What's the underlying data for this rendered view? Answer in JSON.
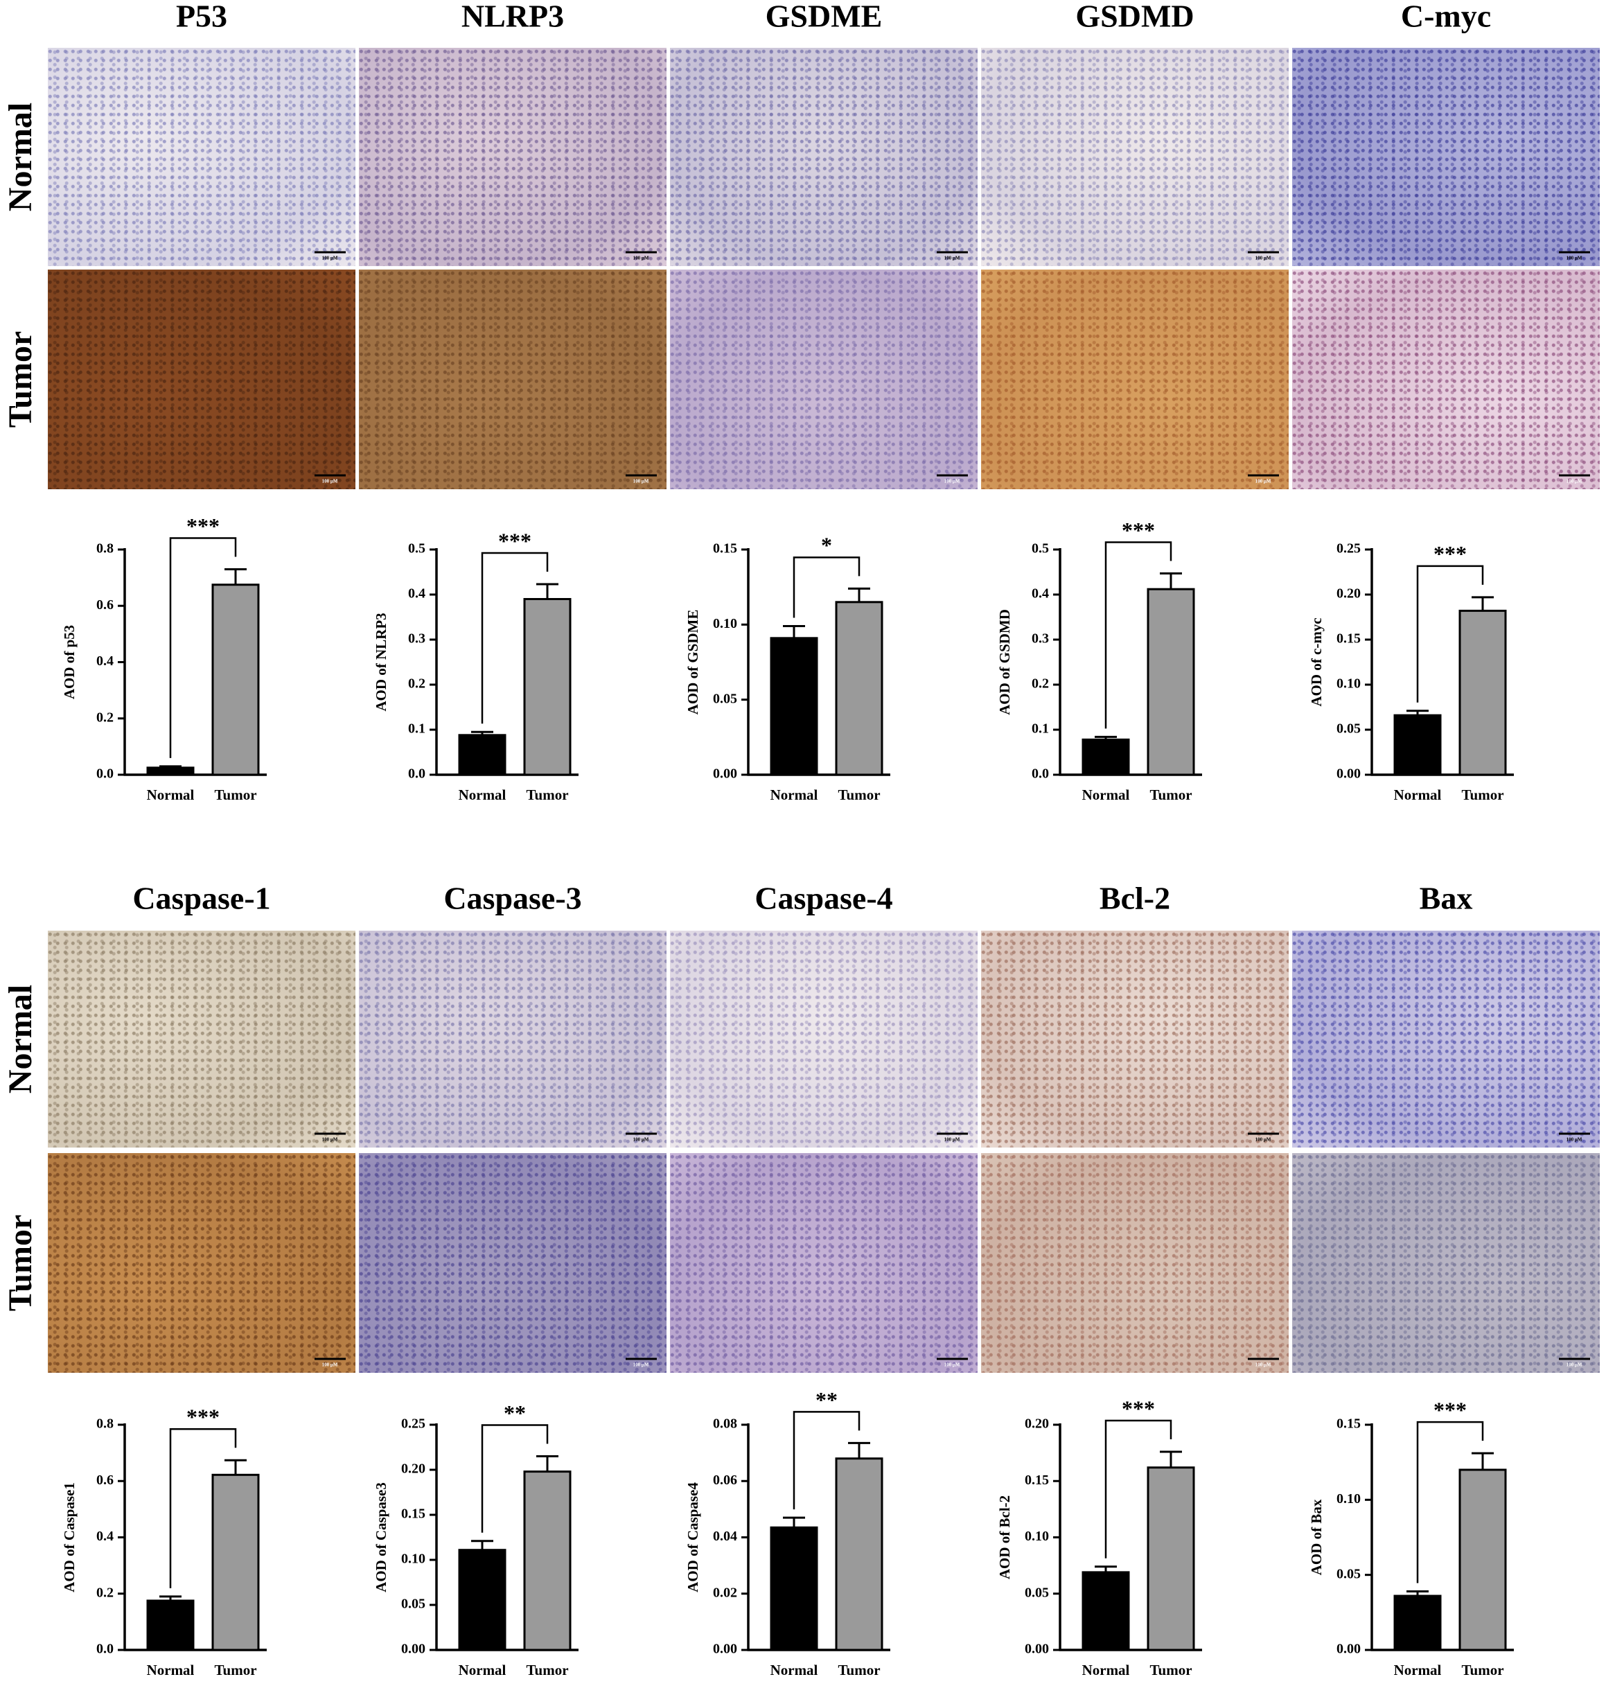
{
  "sections": [
    {
      "titles": [
        "P53",
        "NLRP3",
        "GSDME",
        "GSDMD",
        "C-myc"
      ],
      "row_labels": [
        "Normal",
        "Tumor"
      ],
      "scale_bar": "100 μM"
    },
    {
      "titles": [
        "Caspase-1",
        "Caspase-3",
        "Caspase-4",
        "Bcl-2",
        "Bax"
      ],
      "row_labels": [
        "Normal",
        "Tumor"
      ],
      "scale_bar": "100 μM"
    }
  ],
  "chart_data": [
    {
      "type": "bar",
      "ylabel": "AOD of p53",
      "categories": [
        "Normal",
        "Tumor"
      ],
      "values": [
        0.025,
        0.675
      ],
      "errors": [
        0.005,
        0.055
      ],
      "colors": [
        "#000000",
        "#9a9a9a"
      ],
      "ylim": [
        0,
        0.8
      ],
      "yticks": [
        {
          "value": 0,
          "label": "0.0"
        },
        {
          "value": 0.2,
          "label": "0.2"
        },
        {
          "value": 0.4,
          "label": "0.4"
        },
        {
          "value": 0.6,
          "label": "0.6"
        },
        {
          "value": 0.8,
          "label": "0.8"
        }
      ],
      "annotation": "***"
    },
    {
      "type": "bar",
      "ylabel": "AOD of NLRP3",
      "categories": [
        "Normal",
        "Tumor"
      ],
      "values": [
        0.088,
        0.39
      ],
      "errors": [
        0.007,
        0.033
      ],
      "colors": [
        "#000000",
        "#9a9a9a"
      ],
      "ylim": [
        0,
        0.5
      ],
      "yticks": [
        {
          "value": 0,
          "label": "0.0"
        },
        {
          "value": 0.1,
          "label": "0.1"
        },
        {
          "value": 0.2,
          "label": "0.2"
        },
        {
          "value": 0.3,
          "label": "0.3"
        },
        {
          "value": 0.4,
          "label": "0.4"
        },
        {
          "value": 0.5,
          "label": "0.5"
        }
      ],
      "annotation": "***"
    },
    {
      "type": "bar",
      "ylabel": "AOD of GSDME",
      "categories": [
        "Normal",
        "Tumor"
      ],
      "values": [
        0.091,
        0.115
      ],
      "errors": [
        0.008,
        0.009
      ],
      "colors": [
        "#000000",
        "#9a9a9a"
      ],
      "ylim": [
        0,
        0.15
      ],
      "yticks": [
        {
          "value": 0,
          "label": "0.00"
        },
        {
          "value": 0.05,
          "label": "0.05"
        },
        {
          "value": 0.1,
          "label": "0.10"
        },
        {
          "value": 0.15,
          "label": "0.15"
        }
      ],
      "annotation": "*"
    },
    {
      "type": "bar",
      "ylabel": "AOD of GSDMD",
      "categories": [
        "Normal",
        "Tumor"
      ],
      "values": [
        0.078,
        0.412
      ],
      "errors": [
        0.006,
        0.035
      ],
      "colors": [
        "#000000",
        "#9a9a9a"
      ],
      "ylim": [
        0,
        0.5
      ],
      "yticks": [
        {
          "value": 0,
          "label": "0.0"
        },
        {
          "value": 0.1,
          "label": "0.1"
        },
        {
          "value": 0.2,
          "label": "0.2"
        },
        {
          "value": 0.3,
          "label": "0.3"
        },
        {
          "value": 0.4,
          "label": "0.4"
        },
        {
          "value": 0.5,
          "label": "0.5"
        }
      ],
      "annotation": "***"
    },
    {
      "type": "bar",
      "ylabel": "AOD of c-myc",
      "categories": [
        "Normal",
        "Tumor"
      ],
      "values": [
        0.066,
        0.182
      ],
      "errors": [
        0.005,
        0.015
      ],
      "colors": [
        "#000000",
        "#9a9a9a"
      ],
      "ylim": [
        0,
        0.25
      ],
      "yticks": [
        {
          "value": 0,
          "label": "0.00"
        },
        {
          "value": 0.05,
          "label": "0.05"
        },
        {
          "value": 0.1,
          "label": "0.10"
        },
        {
          "value": 0.15,
          "label": "0.15"
        },
        {
          "value": 0.2,
          "label": "0.20"
        },
        {
          "value": 0.25,
          "label": "0.25"
        }
      ],
      "annotation": "***"
    },
    {
      "type": "bar",
      "ylabel": "AOD of Caspase1",
      "categories": [
        "Normal",
        "Tumor"
      ],
      "values": [
        0.175,
        0.622
      ],
      "errors": [
        0.015,
        0.052
      ],
      "colors": [
        "#000000",
        "#9a9a9a"
      ],
      "ylim": [
        0,
        0.8
      ],
      "yticks": [
        {
          "value": 0,
          "label": "0.0"
        },
        {
          "value": 0.2,
          "label": "0.2"
        },
        {
          "value": 0.4,
          "label": "0.4"
        },
        {
          "value": 0.6,
          "label": "0.6"
        },
        {
          "value": 0.8,
          "label": "0.8"
        }
      ],
      "annotation": "***"
    },
    {
      "type": "bar",
      "ylabel": "AOD of Caspase3",
      "categories": [
        "Normal",
        "Tumor"
      ],
      "values": [
        0.111,
        0.198
      ],
      "errors": [
        0.01,
        0.017
      ],
      "colors": [
        "#000000",
        "#9a9a9a"
      ],
      "ylim": [
        0,
        0.25
      ],
      "yticks": [
        {
          "value": 0,
          "label": "0.00"
        },
        {
          "value": 0.05,
          "label": "0.05"
        },
        {
          "value": 0.1,
          "label": "0.10"
        },
        {
          "value": 0.15,
          "label": "0.15"
        },
        {
          "value": 0.2,
          "label": "0.20"
        },
        {
          "value": 0.25,
          "label": "0.25"
        }
      ],
      "annotation": "**"
    },
    {
      "type": "bar",
      "ylabel": "AOD of Caspase4",
      "categories": [
        "Normal",
        "Tumor"
      ],
      "values": [
        0.0435,
        0.068
      ],
      "errors": [
        0.0035,
        0.0055
      ],
      "colors": [
        "#000000",
        "#9a9a9a"
      ],
      "ylim": [
        0,
        0.08
      ],
      "yticks": [
        {
          "value": 0,
          "label": "0.00"
        },
        {
          "value": 0.02,
          "label": "0.02"
        },
        {
          "value": 0.04,
          "label": "0.04"
        },
        {
          "value": 0.06,
          "label": "0.06"
        },
        {
          "value": 0.08,
          "label": "0.08"
        }
      ],
      "annotation": "**"
    },
    {
      "type": "bar",
      "ylabel": "AOD of Bcl-2",
      "categories": [
        "Normal",
        "Tumor"
      ],
      "values": [
        0.069,
        0.162
      ],
      "errors": [
        0.005,
        0.014
      ],
      "colors": [
        "#000000",
        "#9a9a9a"
      ],
      "ylim": [
        0,
        0.2
      ],
      "yticks": [
        {
          "value": 0,
          "label": "0.00"
        },
        {
          "value": 0.05,
          "label": "0.05"
        },
        {
          "value": 0.1,
          "label": "0.10"
        },
        {
          "value": 0.15,
          "label": "0.15"
        },
        {
          "value": 0.2,
          "label": "0.20"
        }
      ],
      "annotation": "***"
    },
    {
      "type": "bar",
      "ylabel": "AOD of Bax",
      "categories": [
        "Normal",
        "Tumor"
      ],
      "values": [
        0.036,
        0.12
      ],
      "errors": [
        0.003,
        0.011
      ],
      "colors": [
        "#000000",
        "#9a9a9a"
      ],
      "ylim": [
        0,
        0.15
      ],
      "yticks": [
        {
          "value": 0,
          "label": "0.00"
        },
        {
          "value": 0.05,
          "label": "0.05"
        },
        {
          "value": 0.1,
          "label": "0.10"
        },
        {
          "value": 0.15,
          "label": "0.15"
        }
      ],
      "annotation": "***"
    }
  ]
}
